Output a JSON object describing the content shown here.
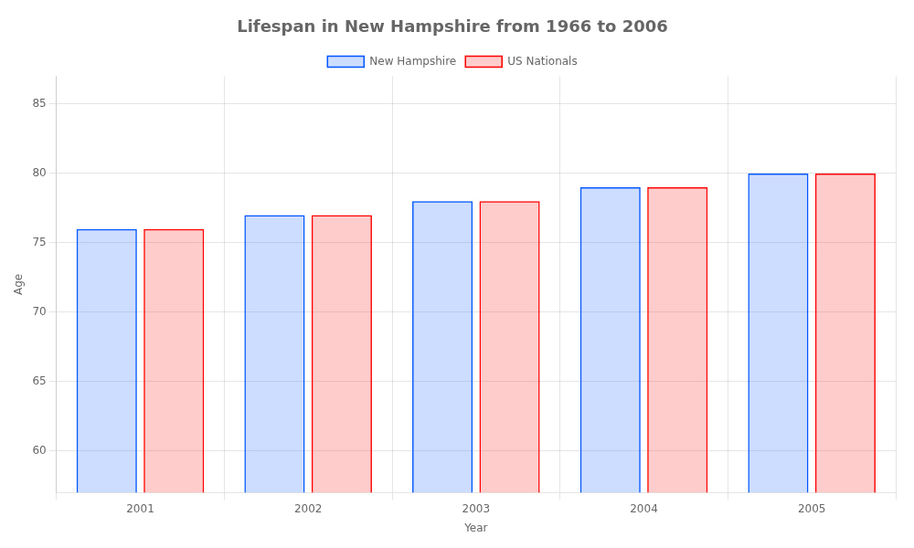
{
  "chart_data": {
    "type": "bar",
    "title": "Lifespan in New Hampshire from 1966 to 2006",
    "xlabel": "Year",
    "ylabel": "Age",
    "categories": [
      "2001",
      "2002",
      "2003",
      "2004",
      "2005"
    ],
    "series": [
      {
        "name": "New Hampshire",
        "color": "#0055ff",
        "values": [
          76,
          77,
          78,
          79,
          80
        ]
      },
      {
        "name": "US Nationals",
        "color": "#ff0000",
        "values": [
          76,
          77,
          78,
          79,
          80
        ]
      }
    ],
    "ylim": [
      57,
      87
    ],
    "yticks": [
      60,
      65,
      70,
      75,
      80,
      85
    ],
    "grid": true,
    "legend": "top"
  }
}
